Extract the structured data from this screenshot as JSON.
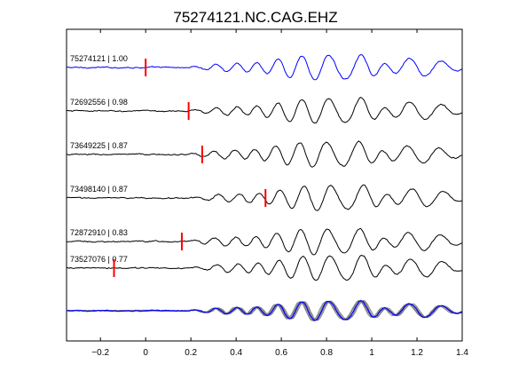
{
  "chart_data": {
    "type": "line",
    "title": "75274121.NC.CAG.EHZ",
    "xlabel": "",
    "ylabel": "",
    "xlim": [
      -0.35,
      1.4
    ],
    "x_ticks": [
      -0.2,
      0,
      0.2,
      0.4,
      0.6,
      0.8,
      1,
      1.2,
      1.4
    ],
    "x_tick_labels": [
      "−0.2",
      "0",
      "0.2",
      "0.4",
      "0.6",
      "0.8",
      "1",
      "1.2",
      "1.4"
    ],
    "grid": false,
    "colors": {
      "template": "#0000ff",
      "match": "#000000",
      "pick": "#ff0000",
      "overlay_match": "#7f7f7f"
    },
    "traces": [
      {
        "label": "75274121 | 1.00",
        "event_id": "75274121",
        "correlation": 1.0,
        "pick_time": 0.0,
        "shift": 0.0,
        "color": "#0000ff"
      },
      {
        "label": "72692556 | 0.98",
        "event_id": "72692556",
        "correlation": 0.98,
        "pick_time": 0.19,
        "shift": 0.0,
        "color": "#000000"
      },
      {
        "label": "73649225 | 0.87",
        "event_id": "73649225",
        "correlation": 0.87,
        "pick_time": 0.25,
        "shift": -0.01,
        "color": "#000000"
      },
      {
        "label": "73498140 | 0.87",
        "event_id": "73498140",
        "correlation": 0.87,
        "pick_time": 0.53,
        "shift": 0.01,
        "color": "#000000"
      },
      {
        "label": "72872910 | 0.83",
        "event_id": "72872910",
        "correlation": 0.83,
        "pick_time": 0.16,
        "shift": -0.005,
        "color": "#000000"
      },
      {
        "label": "73527076 | 0.77",
        "event_id": "73527076",
        "correlation": 0.77,
        "pick_time": -0.14,
        "shift": 0.005,
        "color": "#000000"
      }
    ],
    "waveform_model": {
      "onset": 0.2,
      "t_step": 0.004,
      "noise_amplitude": 0.035,
      "components": [
        {
          "amp": 0.25,
          "freq": 10.5,
          "phase": 0.0,
          "center": 0.45,
          "width": 0.2
        },
        {
          "amp": 0.55,
          "freq": 8.8,
          "phase": 1.1,
          "center": 0.8,
          "width": 0.25
        },
        {
          "amp": 0.85,
          "freq": 8.2,
          "phase": 2.3,
          "center": 0.96,
          "width": 0.12
        },
        {
          "amp": 0.4,
          "freq": 7.0,
          "phase": 0.5,
          "center": 1.2,
          "width": 0.18
        }
      ]
    }
  }
}
